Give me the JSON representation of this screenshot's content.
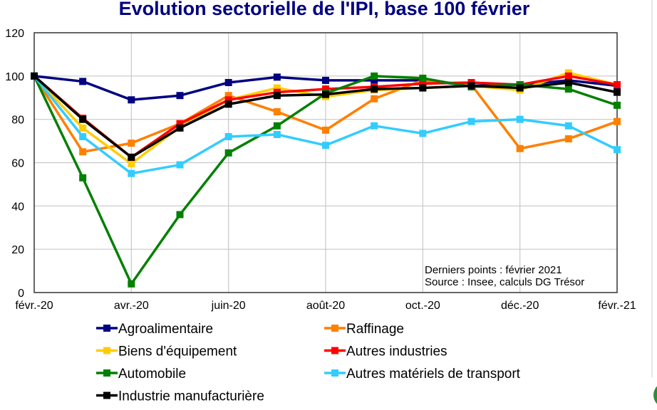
{
  "chart_data": {
    "type": "line",
    "title": "Evolution sectorielle de l'IPI, base 100 février",
    "xlabel": "",
    "ylabel": "",
    "ylim": [
      0,
      120
    ],
    "yticks": [
      "0",
      "20",
      "40",
      "60",
      "80",
      "100",
      "120"
    ],
    "xtick_labels": [
      "févr.-20",
      "avr.-20",
      "juin-20",
      "août-20",
      "oct.-20",
      "déc.-20",
      "févr.-21"
    ],
    "x": [
      "févr.-20",
      "mars-20",
      "avr.-20",
      "mai-20",
      "juin-20",
      "juil.-20",
      "août-20",
      "sept.-20",
      "oct.-20",
      "nov.-20",
      "déc.-20",
      "janv.-21",
      "févr.-21"
    ],
    "grid": true,
    "legend_position": "bottom",
    "annotations": [
      "Derniers points : février 2021",
      "Source : Insee, calculs DG Trésor"
    ],
    "series": [
      {
        "name": "Agroalimentaire",
        "color": "#000080",
        "values": [
          100,
          97.5,
          89,
          91,
          97,
          99.5,
          98,
          98,
          98,
          95.5,
          96,
          98,
          95.5
        ]
      },
      {
        "name": "Raffinage",
        "color": "#FF7F00",
        "values": [
          100,
          65,
          69,
          78,
          91,
          83.5,
          75,
          89.5,
          98,
          96,
          66.5,
          71,
          79
        ]
      },
      {
        "name": "Biens d'équipement",
        "color": "#FFCC00",
        "values": [
          100,
          76,
          59.5,
          76.5,
          89,
          94.5,
          90.5,
          93.5,
          94.5,
          95.5,
          93.5,
          101.5,
          96
        ]
      },
      {
        "name": "Autres industries",
        "color": "#FF0000",
        "values": [
          100,
          80.5,
          62.5,
          78,
          89,
          92.5,
          94,
          95,
          96.5,
          97,
          96,
          100,
          96
        ]
      },
      {
        "name": "Automobile",
        "color": "#008000",
        "values": [
          100,
          53,
          4,
          36,
          64.5,
          77,
          92,
          100,
          99,
          95,
          96,
          94,
          86.5
        ]
      },
      {
        "name": "Autres matériels de transport",
        "color": "#33CCFF",
        "values": [
          100,
          72,
          55,
          59,
          72,
          73,
          68,
          77,
          73.5,
          79,
          80,
          77,
          66
        ]
      },
      {
        "name": "Industrie manufacturière",
        "color": "#000000",
        "values": [
          100,
          80,
          62.5,
          76,
          87,
          91,
          91.5,
          94,
          94.5,
          95.5,
          94.5,
          97,
          92.5
        ]
      }
    ]
  }
}
